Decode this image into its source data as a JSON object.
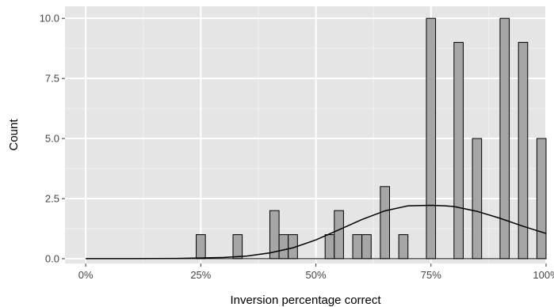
{
  "chart_data": {
    "type": "bar",
    "xlabel": "Inversion percentage correct",
    "ylabel": "Count",
    "xlim": [
      -0.045,
      1.0
    ],
    "ylim": [
      -0.2,
      10.5
    ],
    "x_ticks": [
      0,
      0.25,
      0.5,
      0.75,
      1.0
    ],
    "x_tick_labels": [
      "0%",
      "25%",
      "50%",
      "75%",
      "100%"
    ],
    "y_ticks": [
      0,
      2.5,
      5,
      7.5,
      10
    ],
    "y_tick_labels": [
      "0.0",
      "2.5",
      "5.0",
      "7.5",
      "10.0"
    ],
    "grid": true,
    "bin_width": 0.02,
    "bars": [
      {
        "x": 0.25,
        "count": 1
      },
      {
        "x": 0.33,
        "count": 1
      },
      {
        "x": 0.41,
        "count": 2
      },
      {
        "x": 0.43,
        "count": 1
      },
      {
        "x": 0.45,
        "count": 1
      },
      {
        "x": 0.53,
        "count": 1
      },
      {
        "x": 0.55,
        "count": 2
      },
      {
        "x": 0.59,
        "count": 1
      },
      {
        "x": 0.61,
        "count": 1
      },
      {
        "x": 0.65,
        "count": 3
      },
      {
        "x": 0.69,
        "count": 1
      },
      {
        "x": 0.75,
        "count": 10
      },
      {
        "x": 0.81,
        "count": 9
      },
      {
        "x": 0.85,
        "count": 5
      },
      {
        "x": 0.91,
        "count": 10
      },
      {
        "x": 0.95,
        "count": 9
      },
      {
        "x": 0.99,
        "count": 5
      }
    ],
    "density_curve": {
      "x": [
        0,
        0.1,
        0.2,
        0.3,
        0.35,
        0.4,
        0.45,
        0.5,
        0.55,
        0.6,
        0.65,
        0.7,
        0.75,
        0.78,
        0.8,
        0.85,
        0.9,
        0.95,
        1.0
      ],
      "y": [
        0.0,
        0.0,
        0.01,
        0.05,
        0.11,
        0.24,
        0.45,
        0.78,
        1.2,
        1.63,
        1.99,
        2.2,
        2.22,
        2.2,
        2.17,
        1.97,
        1.68,
        1.35,
        1.05
      ]
    },
    "colors": {
      "panel_background": "#e5e5e5",
      "grid_major": "#ffffff",
      "grid_minor": "#f2f2f2",
      "bar_fill": "#a6a6a6",
      "bar_outline": "#000000",
      "curve": "#000000",
      "tick_label": "#444444"
    }
  }
}
